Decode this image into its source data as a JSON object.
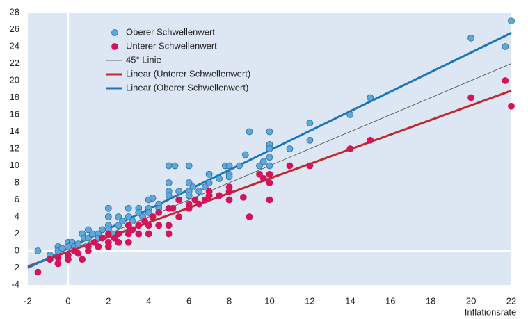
{
  "chart_data": {
    "type": "scatter",
    "x_label": "Inflationsrate",
    "xlim": [
      -2,
      22
    ],
    "xticks": [
      -2,
      0,
      2,
      4,
      6,
      8,
      10,
      12,
      14,
      16,
      18,
      20,
      22
    ],
    "ylim": [
      -4,
      28
    ],
    "yticks": [
      -4,
      -2,
      0,
      2,
      4,
      6,
      8,
      10,
      12,
      14,
      16,
      18,
      20,
      22,
      24,
      26,
      28
    ],
    "legend": "upper left",
    "series": [
      {
        "name": "Oberer Schwellenwert",
        "type": "scatter",
        "color": "#5fa8dc",
        "x": [
          -1.5,
          -0.9,
          -0.5,
          -0.5,
          -0.3,
          0,
          0,
          0.2,
          0.3,
          0.5,
          0.7,
          0.8,
          1,
          1,
          1.2,
          1.5,
          1.5,
          1.7,
          2,
          2,
          2,
          2,
          2.2,
          2.5,
          2.5,
          2.7,
          3,
          3,
          3,
          3.2,
          3.5,
          3.5,
          3.7,
          4,
          4,
          4,
          4.2,
          4.5,
          4.5,
          5,
          5,
          5,
          5,
          5.3,
          5.5,
          5.5,
          6,
          6,
          6,
          6,
          6.2,
          6.5,
          6.8,
          7,
          7,
          7,
          7.5,
          7.8,
          8,
          8,
          8,
          8.5,
          8.8,
          9,
          9.5,
          9.7,
          10,
          10,
          10,
          10,
          10,
          11,
          12,
          12,
          14,
          15,
          20,
          21.7,
          22
        ],
        "values": [
          0,
          -0.5,
          0.5,
          0,
          0.3,
          1,
          0.5,
          1,
          0.5,
          0.8,
          2,
          1.5,
          2.5,
          1.5,
          2,
          2,
          1.5,
          2.5,
          5,
          4,
          3,
          2.5,
          2,
          3,
          4,
          3.5,
          5,
          4,
          3,
          3.5,
          5,
          4.5,
          4,
          6,
          5,
          4.5,
          6.2,
          5.5,
          5,
          10,
          8,
          7,
          6.5,
          10,
          7,
          6,
          10,
          8,
          7,
          6.5,
          7.5,
          7,
          7.5,
          9,
          8,
          6.5,
          8.5,
          10,
          10,
          9,
          8.7,
          10,
          11.3,
          14,
          10,
          10.5,
          14,
          12.5,
          12,
          11,
          10,
          12,
          15,
          13,
          16,
          18,
          25,
          24,
          27
        ]
      },
      {
        "name": "Unterer Schwellenwert",
        "type": "scatter",
        "color": "#d4145a",
        "x": [
          -1.5,
          -0.9,
          -0.5,
          -0.5,
          0,
          0,
          0.3,
          0.5,
          0.7,
          1,
          1,
          1.3,
          1.5,
          1.7,
          2,
          2,
          2,
          2.3,
          2.5,
          2.5,
          3,
          3,
          3,
          3.2,
          3.5,
          3.5,
          3.8,
          4,
          4,
          4.2,
          4.5,
          4.5,
          5,
          5,
          5,
          5.2,
          5.5,
          5.5,
          6,
          6,
          6.3,
          6.5,
          6.8,
          7,
          7,
          7.5,
          8,
          8,
          8,
          8.7,
          9,
          9.5,
          9.7,
          10,
          10,
          10,
          11,
          12,
          14,
          15,
          20,
          21.7,
          22
        ],
        "values": [
          -2.5,
          -1,
          -1.5,
          -0.8,
          -0.5,
          -1,
          0,
          -0.3,
          -1,
          0.5,
          0,
          1,
          0.5,
          1.5,
          1,
          2,
          0.5,
          1.5,
          2,
          1,
          3,
          2,
          1,
          2.5,
          2,
          3,
          3.5,
          3,
          2,
          4,
          3,
          4.5,
          5,
          3,
          2,
          5,
          4,
          6,
          5,
          5.5,
          6,
          5.5,
          6,
          7,
          6.5,
          6.5,
          7.5,
          6,
          7,
          6.3,
          4,
          9,
          8.5,
          9,
          8,
          6,
          10,
          10,
          12,
          13,
          18,
          20,
          17
        ]
      },
      {
        "name": "45° Linie",
        "type": "line",
        "color": "#444444",
        "width": 0.8,
        "x": [
          -2,
          22
        ],
        "values": [
          -2,
          22
        ]
      },
      {
        "name": "Linear (Unterer Schwellenwert)",
        "type": "line",
        "color": "#c1272d",
        "width": 3,
        "x": [
          -2,
          22
        ],
        "values": [
          -1.82,
          18.82
        ]
      },
      {
        "name": "Linear (Oberer Schwellenwert)",
        "type": "line",
        "color": "#1a75bb",
        "width": 3,
        "x": [
          -2,
          22
        ],
        "values": [
          -2,
          25.6
        ]
      }
    ]
  }
}
